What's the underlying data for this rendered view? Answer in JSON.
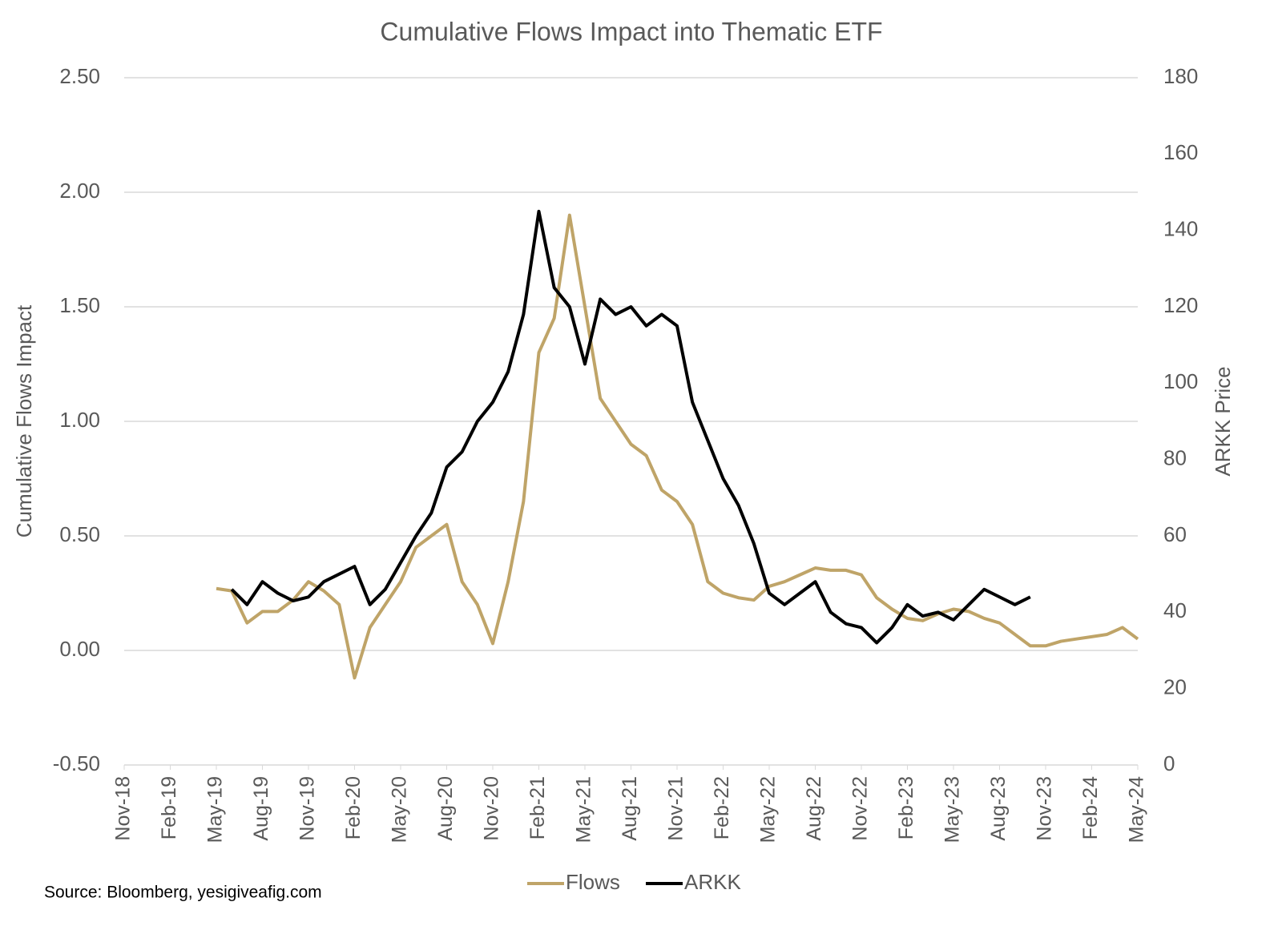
{
  "chart_data": {
    "type": "line",
    "title": "Cumulative Flows Impact into Thematic ETF",
    "y_label": "Cumulative Flows Impact",
    "y2_label": "ARKK Price",
    "source": "Source: Bloomberg, yesigiveafig.com",
    "x": [
      "2019-05",
      "2019-06",
      "2019-07",
      "2019-08",
      "2019-09",
      "2019-10",
      "2019-11",
      "2019-12",
      "2020-01",
      "2020-02",
      "2020-03",
      "2020-04",
      "2020-05",
      "2020-06",
      "2020-07",
      "2020-08",
      "2020-09",
      "2020-10",
      "2020-11",
      "2020-12",
      "2021-01",
      "2021-02",
      "2021-03",
      "2021-04",
      "2021-05",
      "2021-06",
      "2021-07",
      "2021-08",
      "2021-09",
      "2021-10",
      "2021-11",
      "2021-12",
      "2022-01",
      "2022-02",
      "2022-03",
      "2022-04",
      "2022-05",
      "2022-06",
      "2022-07",
      "2022-08",
      "2022-09",
      "2022-10",
      "2022-11",
      "2022-12",
      "2023-01",
      "2023-02",
      "2023-03",
      "2023-04",
      "2023-05",
      "2023-06",
      "2023-07",
      "2023-08",
      "2023-09",
      "2023-10",
      "2023-11",
      "2023-12",
      "2024-01",
      "2024-02",
      "2024-03",
      "2024-04",
      "2024-05"
    ],
    "xlim": [
      "2018-11",
      "2024-05"
    ],
    "xticks": [
      {
        "value": "2018-11",
        "label": "Nov-18"
      },
      {
        "value": "2019-02",
        "label": "Feb-19"
      },
      {
        "value": "2019-05",
        "label": "May-19"
      },
      {
        "value": "2019-08",
        "label": "Aug-19"
      },
      {
        "value": "2019-11",
        "label": "Nov-19"
      },
      {
        "value": "2020-02",
        "label": "Feb-20"
      },
      {
        "value": "2020-05",
        "label": "May-20"
      },
      {
        "value": "2020-08",
        "label": "Aug-20"
      },
      {
        "value": "2020-11",
        "label": "Nov-20"
      },
      {
        "value": "2021-02",
        "label": "Feb-21"
      },
      {
        "value": "2021-05",
        "label": "May-21"
      },
      {
        "value": "2021-08",
        "label": "Aug-21"
      },
      {
        "value": "2021-11",
        "label": "Nov-21"
      },
      {
        "value": "2022-02",
        "label": "Feb-22"
      },
      {
        "value": "2022-05",
        "label": "May-22"
      },
      {
        "value": "2022-08",
        "label": "Aug-22"
      },
      {
        "value": "2022-11",
        "label": "Nov-22"
      },
      {
        "value": "2023-02",
        "label": "Feb-23"
      },
      {
        "value": "2023-05",
        "label": "May-23"
      },
      {
        "value": "2023-08",
        "label": "Aug-23"
      },
      {
        "value": "2023-11",
        "label": "Nov-23"
      },
      {
        "value": "2024-02",
        "label": "Feb-24"
      },
      {
        "value": "2024-05",
        "label": "May-24"
      }
    ],
    "ylim": [
      -0.5,
      2.5
    ],
    "yticks": [
      {
        "value": -0.5,
        "label": "-0.50"
      },
      {
        "value": 0,
        "label": "0.00"
      },
      {
        "value": 0.5,
        "label": "0.50"
      },
      {
        "value": 1,
        "label": "1.00"
      },
      {
        "value": 1.5,
        "label": "1.50"
      },
      {
        "value": 2,
        "label": "2.00"
      },
      {
        "value": 2.5,
        "label": "2.50"
      }
    ],
    "y2lim": [
      0,
      180
    ],
    "y2ticks": [
      0,
      20,
      40,
      60,
      80,
      100,
      120,
      140,
      160,
      180
    ],
    "grid": true,
    "legend": "bottom",
    "series": [
      {
        "name": "Flows",
        "color": "#bfa468",
        "values": [
          0.27,
          0.26,
          0.12,
          0.17,
          0.17,
          0.22,
          0.3,
          0.26,
          0.2,
          -0.12,
          0.1,
          0.2,
          0.3,
          0.45,
          0.5,
          0.55,
          0.3,
          0.2,
          0.03,
          0.3,
          0.65,
          1.3,
          1.45,
          1.9,
          1.5,
          1.1,
          1.0,
          0.9,
          0.85,
          0.7,
          0.65,
          0.55,
          0.3,
          0.25,
          0.23,
          0.22,
          0.28,
          0.3,
          0.33,
          0.36,
          0.35,
          0.35,
          0.33,
          0.23,
          0.18,
          0.14,
          0.13,
          0.16,
          0.18,
          0.17,
          0.14,
          0.12,
          0.07,
          0.02,
          0.02,
          0.04,
          0.05,
          0.06,
          0.07,
          0.1,
          0.05
        ]
      },
      {
        "name": "ARKK",
        "color": "#000000",
        "axis": "y2",
        "values": [
          null,
          46,
          42,
          48,
          45,
          43,
          44,
          48,
          50,
          52,
          42,
          46,
          53,
          60,
          66,
          78,
          82,
          90,
          95,
          103,
          118,
          145,
          125,
          120,
          105,
          122,
          118,
          120,
          115,
          118,
          115,
          95,
          85,
          75,
          68,
          58,
          45,
          42,
          45,
          48,
          40,
          37,
          36,
          32,
          36,
          42,
          39,
          40,
          38,
          42,
          46,
          44,
          42,
          44,
          null,
          null,
          null,
          null,
          null,
          null,
          null
        ]
      }
    ]
  }
}
